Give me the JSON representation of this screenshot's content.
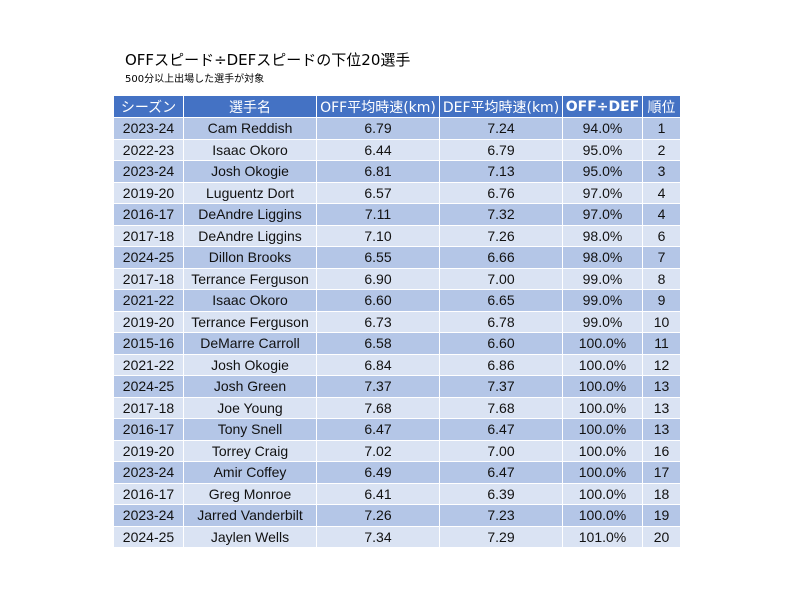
{
  "title": "OFFスピード÷DEFスピードの下位20選手",
  "subtitle": "500分以上出場した選手が対象",
  "columns": [
    "シーズン",
    "選手名",
    "OFF平均時速(km)",
    "DEF平均時速(km)",
    "OFF÷DEF",
    "順位"
  ],
  "rows": [
    [
      "2023-24",
      "Cam Reddish",
      "6.79",
      "7.24",
      "94.0%",
      "1"
    ],
    [
      "2022-23",
      "Isaac Okoro",
      "6.44",
      "6.79",
      "95.0%",
      "2"
    ],
    [
      "2023-24",
      "Josh Okogie",
      "6.81",
      "7.13",
      "95.0%",
      "3"
    ],
    [
      "2019-20",
      "Luguentz Dort",
      "6.57",
      "6.76",
      "97.0%",
      "4"
    ],
    [
      "2016-17",
      "DeAndre Liggins",
      "7.11",
      "7.32",
      "97.0%",
      "4"
    ],
    [
      "2017-18",
      "DeAndre Liggins",
      "7.10",
      "7.26",
      "98.0%",
      "6"
    ],
    [
      "2024-25",
      "Dillon Brooks",
      "6.55",
      "6.66",
      "98.0%",
      "7"
    ],
    [
      "2017-18",
      "Terrance Ferguson",
      "6.90",
      "7.00",
      "99.0%",
      "8"
    ],
    [
      "2021-22",
      "Isaac Okoro",
      "6.60",
      "6.65",
      "99.0%",
      "9"
    ],
    [
      "2019-20",
      "Terrance Ferguson",
      "6.73",
      "6.78",
      "99.0%",
      "10"
    ],
    [
      "2015-16",
      "DeMarre Carroll",
      "6.58",
      "6.60",
      "100.0%",
      "11"
    ],
    [
      "2021-22",
      "Josh Okogie",
      "6.84",
      "6.86",
      "100.0%",
      "12"
    ],
    [
      "2024-25",
      "Josh Green",
      "7.37",
      "7.37",
      "100.0%",
      "13"
    ],
    [
      "2017-18",
      "Joe Young",
      "7.68",
      "7.68",
      "100.0%",
      "13"
    ],
    [
      "2016-17",
      "Tony Snell",
      "6.47",
      "6.47",
      "100.0%",
      "13"
    ],
    [
      "2019-20",
      "Torrey Craig",
      "7.02",
      "7.00",
      "100.0%",
      "16"
    ],
    [
      "2023-24",
      "Amir Coffey",
      "6.49",
      "6.47",
      "100.0%",
      "17"
    ],
    [
      "2016-17",
      "Greg Monroe",
      "6.41",
      "6.39",
      "100.0%",
      "18"
    ],
    [
      "2023-24",
      "Jarred Vanderbilt",
      "7.26",
      "7.23",
      "100.0%",
      "19"
    ],
    [
      "2024-25",
      "Jaylen Wells",
      "7.34",
      "7.29",
      "101.0%",
      "20"
    ]
  ],
  "colors": {
    "header_bg": "#4472c4",
    "header_text": "#ffffff",
    "row_odd": "#b4c6e7",
    "row_even": "#dae3f3"
  }
}
